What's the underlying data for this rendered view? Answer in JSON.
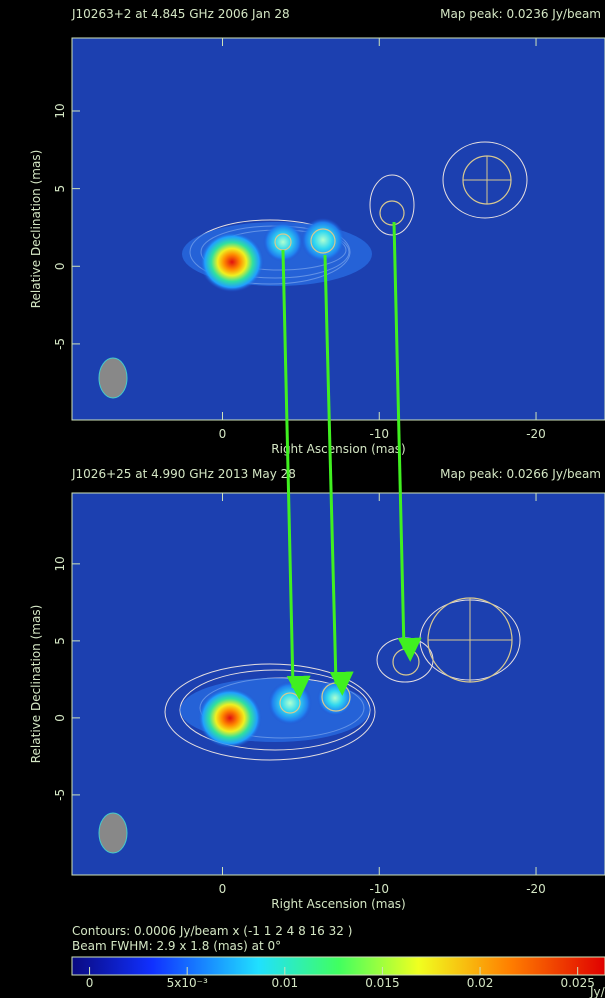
{
  "panels": [
    {
      "title": "J10263+2 at 4.845 GHz 2006 Jan 28",
      "map_peak": "Map peak: 0.0236 Jy/beam",
      "xlabel": "Right Ascension  (mas)",
      "ylabel": "Relative Declination  (mas)",
      "xlim": [
        9.6,
        -24.4
      ],
      "ylim": [
        -9.9,
        14.7
      ],
      "xticks": [
        0,
        -10,
        -20
      ],
      "yticks": [
        -5,
        0,
        5,
        10
      ]
    },
    {
      "title": "J1026+25 at 4.990 GHz 2013 May 28",
      "map_peak": "Map peak: 0.0266 Jy/beam",
      "xlabel": "Right Ascension  (mas)",
      "ylabel": "Relative Declination  (mas)",
      "xlim": [
        9.6,
        -24.4
      ],
      "ylim": [
        -10.2,
        14.6
      ],
      "xticks": [
        0,
        -10,
        -20
      ],
      "yticks": [
        -5,
        0,
        5,
        10
      ]
    }
  ],
  "contours": "Contours: 0.0006 Jy/beam x (-1 1 2 4 8 16 32 )",
  "beam": "Beam FWHM: 2.9 x 1.8 (mas) at 0°",
  "colorbar": {
    "unit": "Jy/beam",
    "lim": [
      -0.0009,
      0.0264
    ],
    "ticks": [
      0,
      {
        "value": 0.005,
        "label": "5x10⁻³"
      },
      0.01,
      0.015,
      0.02,
      0.025
    ]
  }
}
